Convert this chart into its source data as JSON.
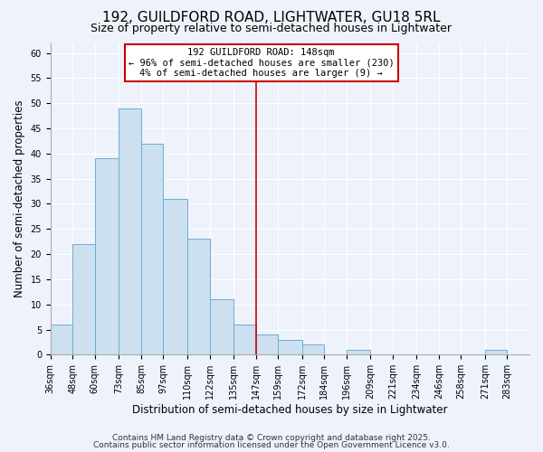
{
  "title": "192, GUILDFORD ROAD, LIGHTWATER, GU18 5RL",
  "subtitle": "Size of property relative to semi-detached houses in Lightwater",
  "xlabel": "Distribution of semi-detached houses by size in Lightwater",
  "ylabel": "Number of semi-detached properties",
  "bin_labels": [
    "36sqm",
    "48sqm",
    "60sqm",
    "73sqm",
    "85sqm",
    "97sqm",
    "110sqm",
    "122sqm",
    "135sqm",
    "147sqm",
    "159sqm",
    "172sqm",
    "184sqm",
    "196sqm",
    "209sqm",
    "221sqm",
    "234sqm",
    "246sqm",
    "258sqm",
    "271sqm",
    "283sqm"
  ],
  "bin_edges": [
    36,
    48,
    60,
    73,
    85,
    97,
    110,
    122,
    135,
    147,
    159,
    172,
    184,
    196,
    209,
    221,
    234,
    246,
    258,
    271,
    283,
    295
  ],
  "counts": [
    6,
    22,
    39,
    49,
    42,
    31,
    23,
    11,
    6,
    4,
    3,
    2,
    0,
    1,
    0,
    0,
    0,
    0,
    0,
    1,
    0
  ],
  "bar_color": "#cce0f0",
  "bar_edge_color": "#6aaed6",
  "vline_x": 147,
  "vline_color": "#cc0000",
  "annotation_title": "192 GUILDFORD ROAD: 148sqm",
  "annotation_line1": "← 96% of semi-detached houses are smaller (230)",
  "annotation_line2": "4% of semi-detached houses are larger (9) →",
  "annotation_box_color": "#ffffff",
  "annotation_box_edge": "#cc0000",
  "ylim": [
    0,
    62
  ],
  "yticks": [
    0,
    5,
    10,
    15,
    20,
    25,
    30,
    35,
    40,
    45,
    50,
    55,
    60
  ],
  "footer1": "Contains HM Land Registry data © Crown copyright and database right 2025.",
  "footer2": "Contains public sector information licensed under the Open Government Licence v3.0.",
  "background_color": "#eef2fb",
  "grid_color": "#ffffff",
  "title_fontsize": 11,
  "subtitle_fontsize": 9,
  "axis_label_fontsize": 8.5,
  "tick_fontsize": 7,
  "footer_fontsize": 6.5,
  "annot_fontsize": 7.5
}
